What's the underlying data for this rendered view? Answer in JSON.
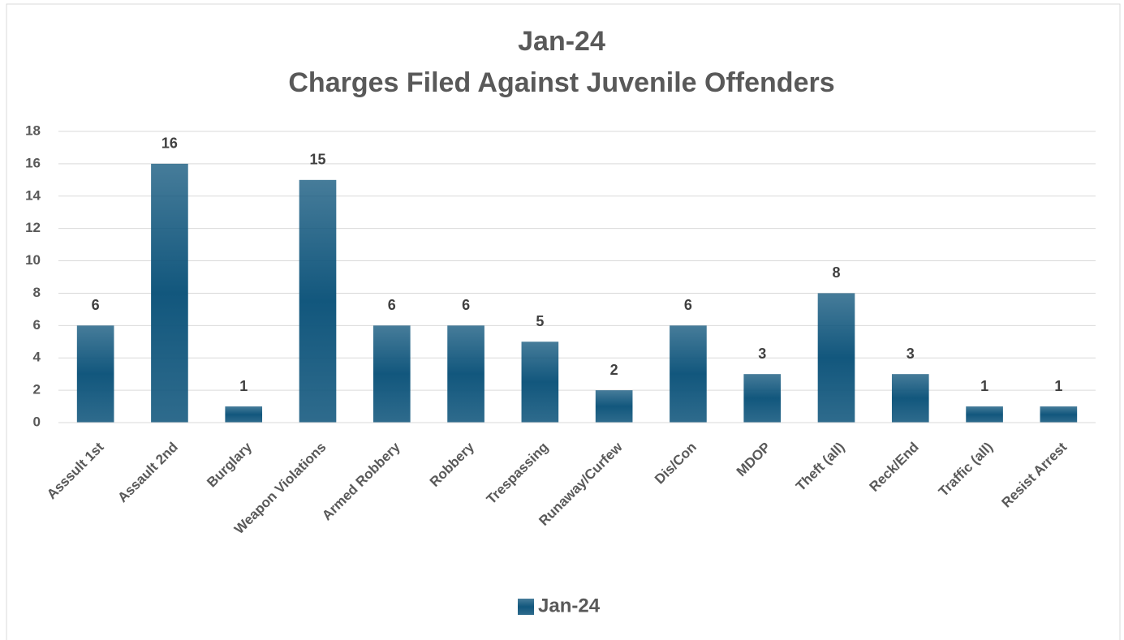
{
  "chart_data": {
    "type": "bar",
    "title": "Jan-24",
    "subtitle": "Charges Filed Against Juvenile Offenders",
    "categories": [
      "Asssult 1st",
      "Assault 2nd",
      "Burglary",
      "Weapon Violations",
      "Armed Robbery",
      "Robbery",
      "Trespassing",
      "Runaway/Curfew",
      "Dis/Con",
      "MDOP",
      "Theft (all)",
      "Reck/End",
      "Traffic (all)",
      "Resist Arrest"
    ],
    "series": [
      {
        "name": "Jan-24",
        "color": "#12577d",
        "values": [
          6,
          16,
          1,
          15,
          6,
          6,
          5,
          2,
          6,
          3,
          8,
          3,
          1,
          1
        ]
      }
    ],
    "ylim": [
      0,
      18
    ],
    "yticks": [
      0,
      2,
      4,
      6,
      8,
      10,
      12,
      14,
      16,
      18
    ],
    "grid": true,
    "legend": "bottom"
  }
}
